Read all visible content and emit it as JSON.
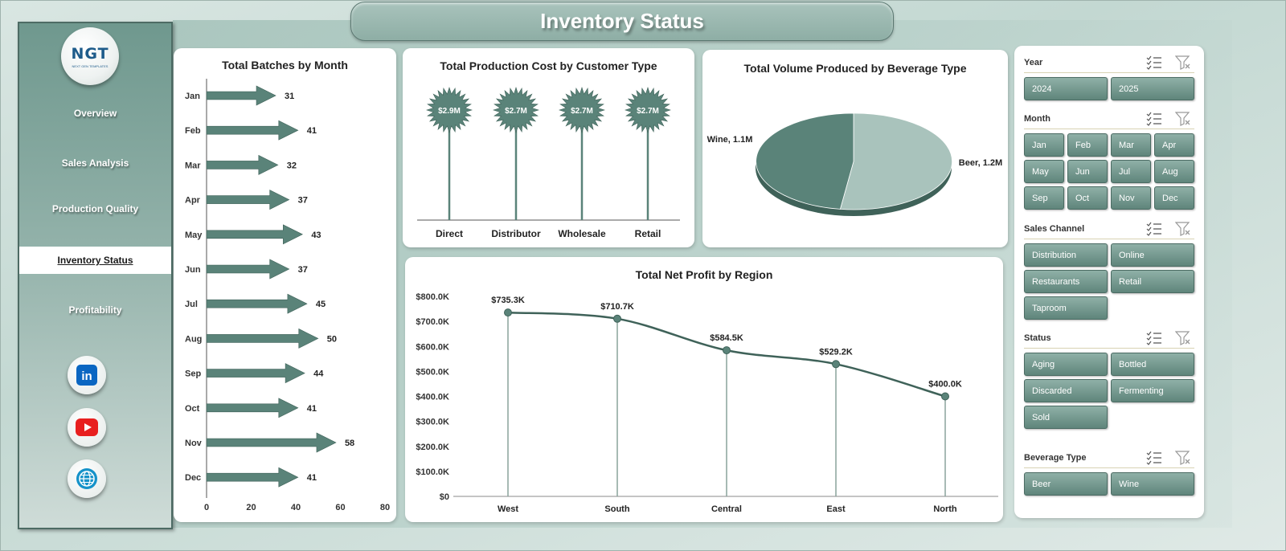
{
  "page": {
    "title": "Inventory Status"
  },
  "sidebar": {
    "logo": "NGT",
    "logo_subtitle": "NEXT GEN TEMPLATES",
    "nav": [
      "Overview",
      "Sales Analysis",
      "Production Quality",
      "Inventory Status",
      "Profitability"
    ],
    "active_nav": "Inventory Status",
    "social": [
      "linkedin-icon",
      "youtube-icon",
      "web-globe-icon"
    ]
  },
  "colors": {
    "accent": "#5a8379",
    "accent_dark": "#3f6259",
    "pie_light": "#a9c3bc",
    "panel_bg": "#c3d8d2"
  },
  "chart_data": [
    {
      "type": "bar",
      "orientation": "horizontal",
      "title": "Total Batches by Month",
      "categories": [
        "Jan",
        "Feb",
        "Mar",
        "Apr",
        "May",
        "Jun",
        "Jul",
        "Aug",
        "Sep",
        "Oct",
        "Nov",
        "Dec"
      ],
      "values": [
        31,
        41,
        32,
        37,
        43,
        37,
        45,
        50,
        44,
        41,
        58,
        41
      ],
      "xticks": [
        "0",
        "20",
        "40",
        "60",
        "80"
      ],
      "xlim": [
        0,
        80
      ],
      "marker": "arrow"
    },
    {
      "type": "bar",
      "title": "Total Production Cost by Customer Type",
      "categories": [
        "Direct",
        "Distributor",
        "Wholesale",
        "Retail"
      ],
      "values": [
        2.9,
        2.7,
        2.7,
        2.7
      ],
      "labels": [
        "$2.9M",
        "$2.7M",
        "$2.7M",
        "$2.7M"
      ],
      "marker": "starburst-lollipop"
    },
    {
      "type": "pie",
      "title": "Total Volume Produced by Beverage Type",
      "slices": [
        {
          "name": "Beer",
          "value": 1.2,
          "label": "Beer, 1.2M"
        },
        {
          "name": "Wine",
          "value": 1.1,
          "label": "Wine, 1.1M"
        }
      ]
    },
    {
      "type": "line",
      "title": "Total Net Profit by Region",
      "categories": [
        "West",
        "South",
        "Central",
        "East",
        "North"
      ],
      "values": [
        735.3,
        710.7,
        584.5,
        529.2,
        400.0
      ],
      "labels": [
        "$735.3K",
        "$710.7K",
        "$584.5K",
        "$529.2K",
        "$400.0K"
      ],
      "ylim": [
        0,
        800
      ],
      "yticks": [
        "$0",
        "$100.0K",
        "$200.0K",
        "$300.0K",
        "$400.0K",
        "$500.0K",
        "$600.0K",
        "$700.0K",
        "$800.0K"
      ],
      "drop_lines": true
    }
  ],
  "slicers": [
    {
      "label": "Year",
      "columns": 2,
      "items": [
        "2024",
        "2025"
      ]
    },
    {
      "label": "Month",
      "columns": 4,
      "items": [
        "Jan",
        "Feb",
        "Mar",
        "Apr",
        "May",
        "Jun",
        "Jul",
        "Aug",
        "Sep",
        "Oct",
        "Nov",
        "Dec"
      ]
    },
    {
      "label": "Sales Channel",
      "columns": 2,
      "items": [
        "Distribution",
        "Online",
        "Restaurants",
        "Retail",
        "Taproom"
      ]
    },
    {
      "label": "Status",
      "columns": 2,
      "items": [
        "Aging",
        "Bottled",
        "Discarded",
        "Fermenting",
        "Sold"
      ]
    },
    {
      "label": "Beverage Type",
      "columns": 2,
      "items": [
        "Beer",
        "Wine"
      ]
    }
  ]
}
